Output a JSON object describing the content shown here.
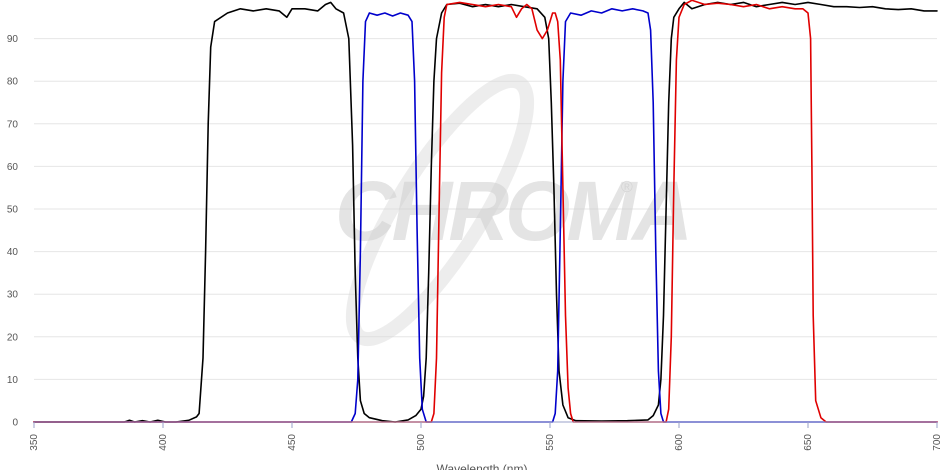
{
  "watermark": {
    "text": "CHROMA",
    "registered": "®"
  },
  "chart_data": {
    "type": "line",
    "title": "",
    "xlabel": "Wavelength (nm)",
    "ylabel": "",
    "xlim": [
      350,
      700
    ],
    "ylim": [
      0,
      100
    ],
    "x_ticks": [
      350,
      400,
      450,
      500,
      550,
      600,
      650,
      700
    ],
    "y_ticks": [
      0,
      10,
      20,
      30,
      40,
      50,
      60,
      70,
      80,
      90
    ],
    "grid": "horizontal",
    "legend": "none",
    "series": [
      {
        "color": "#000000",
        "points": [
          [
            350,
            0
          ],
          [
            385,
            0
          ],
          [
            387,
            0.4
          ],
          [
            389,
            0
          ],
          [
            392,
            0.3
          ],
          [
            395,
            0
          ],
          [
            398,
            0.4
          ],
          [
            401,
            0
          ],
          [
            405,
            0
          ],
          [
            410,
            0.4
          ],
          [
            413,
            1.2
          ],
          [
            414,
            2
          ],
          [
            415.5,
            15
          ],
          [
            416.5,
            40
          ],
          [
            417.5,
            70
          ],
          [
            418.5,
            88
          ],
          [
            420,
            94
          ],
          [
            425,
            96
          ],
          [
            430,
            97
          ],
          [
            435,
            96.5
          ],
          [
            440,
            97
          ],
          [
            445,
            96.5
          ],
          [
            448,
            95
          ],
          [
            450,
            97
          ],
          [
            455,
            97
          ],
          [
            460,
            96.5
          ],
          [
            463,
            98
          ],
          [
            465,
            98.5
          ],
          [
            467,
            97
          ],
          [
            470,
            96
          ],
          [
            472,
            90
          ],
          [
            473.5,
            65
          ],
          [
            474.5,
            35
          ],
          [
            475.5,
            15
          ],
          [
            476.5,
            5
          ],
          [
            478,
            2
          ],
          [
            480,
            1
          ],
          [
            485,
            0.3
          ],
          [
            490,
            0
          ],
          [
            495,
            0.5
          ],
          [
            498,
            1.5
          ],
          [
            500,
            3
          ],
          [
            501,
            6
          ],
          [
            502,
            15
          ],
          [
            503,
            35
          ],
          [
            504,
            60
          ],
          [
            505,
            80
          ],
          [
            506,
            90
          ],
          [
            508,
            96
          ],
          [
            510,
            98
          ],
          [
            515,
            98.3
          ],
          [
            520,
            97.5
          ],
          [
            525,
            98
          ],
          [
            530,
            97.5
          ],
          [
            535,
            98
          ],
          [
            540,
            97.5
          ],
          [
            545,
            97
          ],
          [
            548,
            95
          ],
          [
            549.5,
            90
          ],
          [
            550.5,
            75
          ],
          [
            551.5,
            55
          ],
          [
            552.5,
            30
          ],
          [
            553.5,
            12
          ],
          [
            555,
            4
          ],
          [
            557,
            1
          ],
          [
            560,
            0.3
          ],
          [
            570,
            0.2
          ],
          [
            580,
            0.3
          ],
          [
            588,
            0.5
          ],
          [
            590,
            1.5
          ],
          [
            592,
            4
          ],
          [
            593,
            10
          ],
          [
            594,
            25
          ],
          [
            595,
            50
          ],
          [
            596,
            75
          ],
          [
            597,
            90
          ],
          [
            598,
            95
          ],
          [
            600,
            97
          ],
          [
            602,
            98.5
          ],
          [
            605,
            97
          ],
          [
            610,
            98
          ],
          [
            615,
            98.5
          ],
          [
            620,
            98
          ],
          [
            625,
            98.5
          ],
          [
            630,
            97.5
          ],
          [
            635,
            98
          ],
          [
            640,
            98.5
          ],
          [
            645,
            98
          ],
          [
            650,
            98.5
          ],
          [
            655,
            98
          ],
          [
            660,
            97.5
          ],
          [
            665,
            97.5
          ],
          [
            670,
            97.3
          ],
          [
            675,
            97.5
          ],
          [
            680,
            97
          ],
          [
            685,
            96.8
          ],
          [
            690,
            97
          ],
          [
            695,
            96.5
          ],
          [
            700,
            96.5
          ]
        ]
      },
      {
        "color": "#0000cc",
        "points": [
          [
            350,
            0
          ],
          [
            473,
            0
          ],
          [
            474.5,
            2
          ],
          [
            475.5,
            10
          ],
          [
            476.5,
            40
          ],
          [
            477.5,
            80
          ],
          [
            478.5,
            94
          ],
          [
            480,
            96
          ],
          [
            483,
            95.5
          ],
          [
            486,
            96
          ],
          [
            489,
            95.3
          ],
          [
            492,
            96
          ],
          [
            495,
            95.5
          ],
          [
            496.5,
            94
          ],
          [
            497.5,
            80
          ],
          [
            498.5,
            45
          ],
          [
            499.5,
            15
          ],
          [
            500.5,
            3
          ],
          [
            502,
            0
          ],
          [
            551,
            0
          ],
          [
            552,
            2
          ],
          [
            553,
            12
          ],
          [
            554,
            45
          ],
          [
            555,
            80
          ],
          [
            556,
            94
          ],
          [
            558,
            96
          ],
          [
            562,
            95.5
          ],
          [
            566,
            96.5
          ],
          [
            570,
            96
          ],
          [
            574,
            97
          ],
          [
            578,
            96.5
          ],
          [
            582,
            97
          ],
          [
            586,
            96.5
          ],
          [
            588,
            96
          ],
          [
            589,
            92
          ],
          [
            590,
            75
          ],
          [
            591,
            40
          ],
          [
            592,
            12
          ],
          [
            593,
            2
          ],
          [
            594,
            0
          ],
          [
            700,
            0
          ]
        ]
      },
      {
        "color": "#e00000",
        "points": [
          [
            350,
            0
          ],
          [
            504,
            0
          ],
          [
            505,
            2
          ],
          [
            506,
            15
          ],
          [
            507,
            50
          ],
          [
            508,
            82
          ],
          [
            509,
            95
          ],
          [
            510,
            98
          ],
          [
            515,
            98.5
          ],
          [
            520,
            98
          ],
          [
            525,
            97.5
          ],
          [
            530,
            98
          ],
          [
            535,
            97.5
          ],
          [
            537,
            95
          ],
          [
            539,
            97
          ],
          [
            541,
            98
          ],
          [
            543,
            97
          ],
          [
            545,
            92
          ],
          [
            547,
            90
          ],
          [
            549,
            92
          ],
          [
            551,
            96
          ],
          [
            552,
            96
          ],
          [
            553,
            94
          ],
          [
            554,
            85
          ],
          [
            555,
            55
          ],
          [
            556,
            25
          ],
          [
            557,
            8
          ],
          [
            558,
            2
          ],
          [
            559,
            0
          ],
          [
            595,
            0
          ],
          [
            596,
            3
          ],
          [
            597,
            20
          ],
          [
            598,
            55
          ],
          [
            599,
            85
          ],
          [
            600,
            95
          ],
          [
            602,
            98
          ],
          [
            605,
            99
          ],
          [
            610,
            98
          ],
          [
            615,
            98.3
          ],
          [
            620,
            98
          ],
          [
            625,
            97.5
          ],
          [
            630,
            98
          ],
          [
            635,
            97
          ],
          [
            640,
            97.5
          ],
          [
            645,
            97
          ],
          [
            648,
            97
          ],
          [
            650,
            96
          ],
          [
            651,
            90
          ],
          [
            651.5,
            60
          ],
          [
            652,
            25
          ],
          [
            653,
            5
          ],
          [
            655,
            1
          ],
          [
            657,
            0
          ],
          [
            700,
            0
          ]
        ]
      }
    ]
  }
}
